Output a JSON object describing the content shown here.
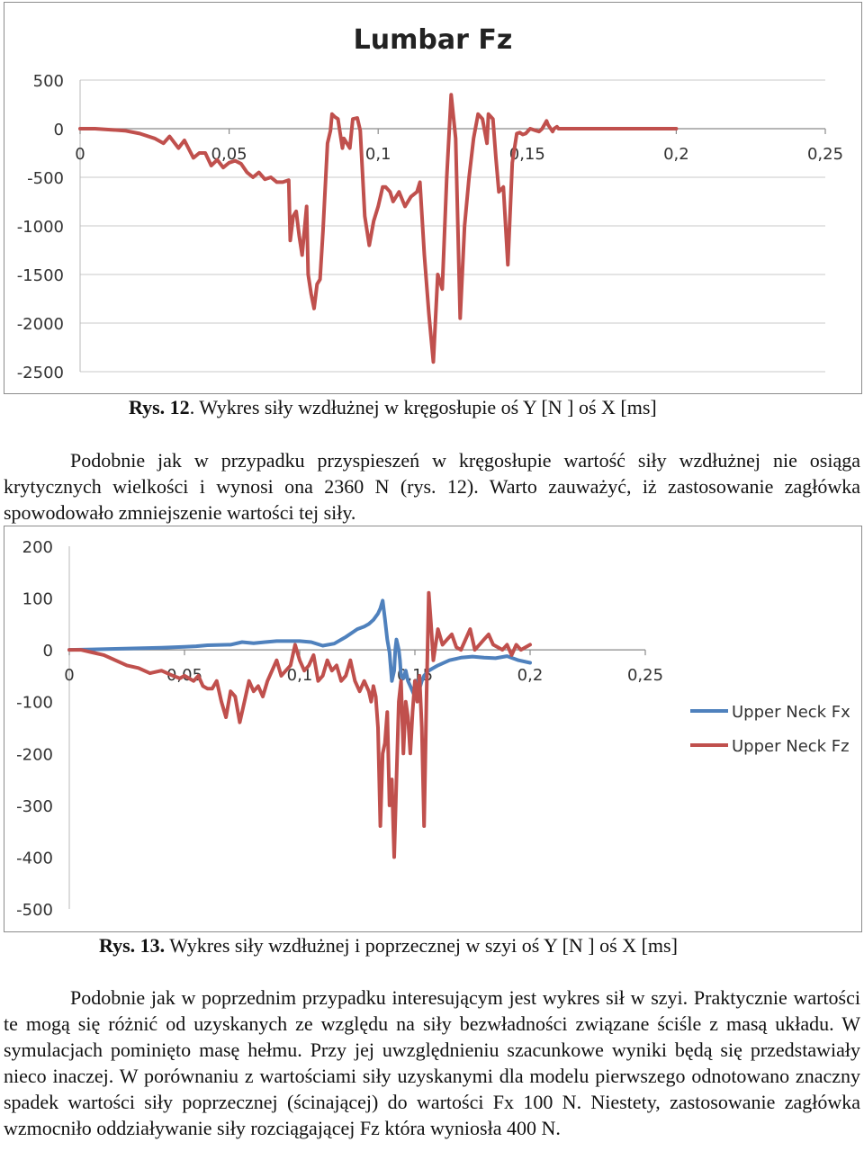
{
  "chart_data": [
    {
      "type": "line",
      "title": "Lumbar Fz",
      "xlabel": "",
      "ylabel": "",
      "xlim": [
        0,
        0.25
      ],
      "ylim": [
        -2500,
        500
      ],
      "x_ticks": [
        "0",
        "0,05",
        "0,1",
        "0,15",
        "0,2",
        "0,25"
      ],
      "y_ticks": [
        "500",
        "0",
        "-500",
        "-1000",
        "-1500",
        "-2000",
        "-2500"
      ],
      "grid": "horizontal",
      "legend": "none",
      "series": [
        {
          "color": "#c0504d",
          "x": [
            0,
            0.005,
            0.01,
            0.015,
            0.02,
            0.025,
            0.028,
            0.03,
            0.033,
            0.035,
            0.038,
            0.04,
            0.042,
            0.044,
            0.046,
            0.048,
            0.05,
            0.052,
            0.054,
            0.056,
            0.058,
            0.06,
            0.062,
            0.064,
            0.066,
            0.068,
            0.07,
            0.0705,
            0.0715,
            0.0725,
            0.0735,
            0.0745,
            0.076,
            0.0765,
            0.0775,
            0.0785,
            0.0795,
            0.0805,
            0.0815,
            0.083,
            0.084,
            0.0845,
            0.0855,
            0.0865,
            0.088,
            0.0885,
            0.0895,
            0.0905,
            0.0915,
            0.093,
            0.094,
            0.0955,
            0.097,
            0.0985,
            0.1,
            0.1015,
            0.1025,
            0.104,
            0.105,
            0.106,
            0.107,
            0.109,
            0.111,
            0.113,
            0.114,
            0.1155,
            0.117,
            0.1185,
            0.12,
            0.1215,
            0.123,
            0.1245,
            0.126,
            0.1275,
            0.129,
            0.1305,
            0.132,
            0.1335,
            0.135,
            0.1365,
            0.137,
            0.1385,
            0.1395,
            0.1405,
            0.142,
            0.1435,
            0.145,
            0.1465,
            0.1475,
            0.1485,
            0.1495,
            0.151,
            0.153,
            0.154,
            0.155,
            0.1565,
            0.157,
            0.1585,
            0.159,
            0.16,
            0.1605,
            0.1615,
            0.163,
            0.165,
            0.17,
            0.175,
            0.18,
            0.185,
            0.19,
            0.195,
            0.2
          ],
          "y": [
            0,
            0,
            -10,
            -20,
            -50,
            -100,
            -150,
            -80,
            -200,
            -120,
            -300,
            -250,
            -250,
            -380,
            -320,
            -400,
            -350,
            -330,
            -360,
            -450,
            -500,
            -450,
            -520,
            -500,
            -550,
            -550,
            -530,
            -1150,
            -900,
            -850,
            -1100,
            -1300,
            -800,
            -1500,
            -1700,
            -1850,
            -1600,
            -1550,
            -1050,
            -150,
            -20,
            150,
            120,
            100,
            -200,
            -100,
            -150,
            -200,
            100,
            110,
            -20,
            -900,
            -1200,
            -950,
            -800,
            -600,
            -600,
            -650,
            -750,
            -700,
            -650,
            -800,
            -700,
            -650,
            -550,
            -1300,
            -1900,
            -2400,
            -1500,
            -1650,
            -500,
            350,
            -100,
            -1950,
            -1000,
            -500,
            -100,
            150,
            100,
            -150,
            150,
            100,
            -300,
            -650,
            -600,
            -1400,
            -350,
            -50,
            -40,
            -60,
            -50,
            0,
            -20,
            -30,
            0,
            80,
            40,
            -30,
            0,
            20,
            0,
            0,
            0,
            0,
            0,
            0,
            0,
            0,
            0,
            0,
            0
          ]
        }
      ]
    },
    {
      "type": "line",
      "title": "",
      "xlabel": "",
      "ylabel": "",
      "xlim": [
        0,
        0.25
      ],
      "ylim": [
        -500,
        200
      ],
      "x_ticks": [
        "0",
        "0,05",
        "0,1",
        "0,15",
        "0,2",
        "0,25"
      ],
      "y_ticks": [
        "200",
        "100",
        "0",
        "-100",
        "-200",
        "-300",
        "-400",
        "-500"
      ],
      "grid": "none",
      "legend": "right",
      "series": [
        {
          "name": "Upper Neck Fx",
          "color": "#4f81bd",
          "x": [
            0,
            0.01,
            0.02,
            0.03,
            0.04,
            0.05,
            0.055,
            0.06,
            0.07,
            0.075,
            0.08,
            0.085,
            0.09,
            0.095,
            0.1,
            0.105,
            0.11,
            0.115,
            0.12,
            0.125,
            0.128,
            0.13,
            0.132,
            0.134,
            0.135,
            0.136,
            0.137,
            0.138,
            0.139,
            0.14,
            0.141,
            0.1415,
            0.142,
            0.143,
            0.1435,
            0.144,
            0.145,
            0.146,
            0.147,
            0.148,
            0.149,
            0.15,
            0.151,
            0.152,
            0.153,
            0.154,
            0.156,
            0.158,
            0.16,
            0.165,
            0.17,
            0.175,
            0.18,
            0.185,
            0.19,
            0.195,
            0.2
          ],
          "y": [
            0,
            1,
            2,
            3,
            4,
            6,
            7,
            9,
            10,
            15,
            13,
            15,
            17,
            17,
            17,
            15,
            8,
            12,
            25,
            40,
            45,
            50,
            58,
            70,
            80,
            95,
            60,
            20,
            -5,
            -60,
            -40,
            0,
            20,
            0,
            -20,
            -50,
            -55,
            -40,
            -60,
            -70,
            -80,
            -90,
            -60,
            -75,
            -60,
            -50,
            -40,
            -35,
            -30,
            -20,
            -15,
            -13,
            -15,
            -16,
            -12,
            -20,
            -25
          ]
        },
        {
          "name": "Upper Neck Fz",
          "color": "#c0504d",
          "x": [
            0,
            0.005,
            0.01,
            0.015,
            0.02,
            0.025,
            0.03,
            0.035,
            0.04,
            0.045,
            0.048,
            0.05,
            0.052,
            0.054,
            0.056,
            0.058,
            0.06,
            0.062,
            0.064,
            0.066,
            0.068,
            0.07,
            0.072,
            0.074,
            0.076,
            0.078,
            0.08,
            0.082,
            0.084,
            0.086,
            0.088,
            0.09,
            0.092,
            0.094,
            0.096,
            0.098,
            0.1,
            0.102,
            0.104,
            0.106,
            0.108,
            0.11,
            0.112,
            0.114,
            0.116,
            0.118,
            0.12,
            0.122,
            0.124,
            0.126,
            0.128,
            0.13,
            0.131,
            0.132,
            0.133,
            0.134,
            0.135,
            0.136,
            0.137,
            0.138,
            0.139,
            0.14,
            0.141,
            0.142,
            0.143,
            0.144,
            0.145,
            0.146,
            0.147,
            0.148,
            0.149,
            0.15,
            0.151,
            0.152,
            0.153,
            0.154,
            0.155,
            0.156,
            0.157,
            0.158,
            0.16,
            0.162,
            0.164,
            0.166,
            0.168,
            0.17,
            0.172,
            0.174,
            0.176,
            0.178,
            0.18,
            0.182,
            0.184,
            0.186,
            0.188,
            0.19,
            0.192,
            0.194,
            0.196,
            0.198,
            0.2
          ],
          "y": [
            0,
            0,
            -5,
            -10,
            -20,
            -30,
            -35,
            -45,
            -40,
            -50,
            -55,
            -50,
            -55,
            -60,
            -50,
            -70,
            -75,
            -75,
            -60,
            -100,
            -130,
            -80,
            -90,
            -140,
            -100,
            -60,
            -80,
            -70,
            -90,
            -60,
            -40,
            -20,
            -50,
            -40,
            -30,
            10,
            -20,
            -40,
            -30,
            -10,
            -60,
            -50,
            -20,
            -40,
            -30,
            -60,
            -50,
            -20,
            -60,
            -80,
            -60,
            -80,
            -100,
            -70,
            -90,
            -150,
            -340,
            -200,
            -180,
            -120,
            -300,
            -250,
            -400,
            -250,
            -100,
            -60,
            -200,
            -100,
            -130,
            -200,
            -120,
            -60,
            -100,
            -50,
            -150,
            -340,
            -100,
            110,
            50,
            -20,
            40,
            10,
            20,
            30,
            5,
            0,
            20,
            40,
            0,
            10,
            20,
            30,
            10,
            5,
            0,
            10,
            -10,
            10,
            0,
            5,
            10
          ]
        }
      ]
    }
  ],
  "captions": {
    "fig12_label": "Rys. 12",
    "fig12_text": ". Wykres siły wzdłużnej w kręgosłupie oś Y [N ] oś X [ms]",
    "fig13_label": "Rys. 13.",
    "fig13_text": " Wykres siły wzdłużnej i poprzecznej w szyi oś Y [N ] oś X [ms]"
  },
  "paragraphs": {
    "p1": "Podobnie jak w przypadku przyspieszeń w kręgosłupie wartość siły wzdłużnej nie osiąga krytycznych wielkości i wynosi ona 2360 N (rys. 12). Warto zauważyć, iż zastosowanie zagłówka spowodowało zmniejszenie wartości tej siły.",
    "p2": "Podobnie jak w poprzednim przypadku interesującym jest wykres sił w szyi. Praktycznie wartości te mogą się różnić od uzyskanych ze względu na siły bezwładności związane ściśle z masą układu. W symulacjach pominięto masę hełmu. Przy jej uwzględnieniu szacunkowe wyniki będą się przedstawiały nieco inaczej. W porównaniu z wartościami siły uzyskanymi dla modelu pierwszego odnotowano znaczny spadek wartości siły poprzecznej (ścinającej) do wartości Fx 100 N. Niestety, zastosowanie zagłówka wzmocniło oddziaływanie siły rozciągającej Fz która wyniosła 400 N."
  }
}
